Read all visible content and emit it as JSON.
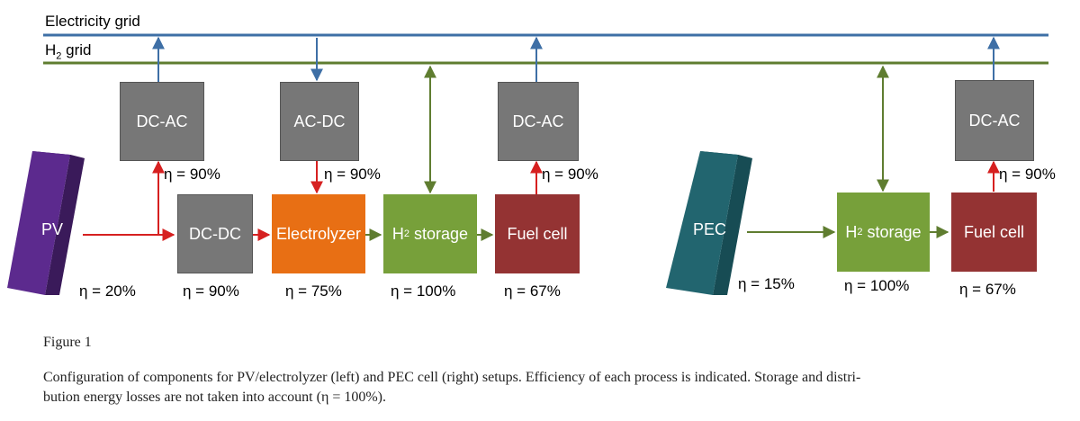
{
  "grids": {
    "electricity": "Electricity grid",
    "h2_prefix": "H",
    "h2_sub": "2",
    "h2_suffix": " grid"
  },
  "panels": {
    "pv": "PV",
    "pec": "PEC"
  },
  "boxes": {
    "dcac1": "DC-AC",
    "acdc": "AC-DC",
    "dcac2": "DC-AC",
    "dcac3": "DC-AC",
    "dcdc": "DC-DC",
    "electrolyzer": "Electrolyzer",
    "storage_prefix": "H",
    "storage_sub": "2",
    "storage_suffix": " storage",
    "fuelcell": "Fuel cell"
  },
  "efficiencies": {
    "dcac1": "η = 90%",
    "acdc": "η = 90%",
    "dcac2": "η = 90%",
    "dcac3": "η = 90%",
    "pv": "η = 20%",
    "dcdc": "η = 90%",
    "electrolyzer": "η = 75%",
    "storage1": "η = 100%",
    "fuelcell1": "η = 67%",
    "pec": "η = 15%",
    "storage2": "η = 100%",
    "fuelcell2": "η = 67%"
  },
  "caption": {
    "title": "Figure 1",
    "line1": "Configuration of components for PV/electrolyzer (left) and PEC cell (right) setups. Efficiency of each process is indicated. Storage and distri-",
    "line2": "bution energy losses are not taken into account (η = 100%)."
  },
  "colors": {
    "electricity_line": "#3e6fa6",
    "h2_line": "#5f7d30",
    "red_arrow": "#d62020",
    "green_arrow": "#5f7d30",
    "blue_arrow": "#3e6fa6",
    "gray_box": "#777777",
    "electrolyzer": "#e86f14",
    "storage": "#77a03a",
    "fuelcell": "#943333",
    "pv_panel": "#5c2a8e",
    "pec_panel": "#22656f"
  }
}
